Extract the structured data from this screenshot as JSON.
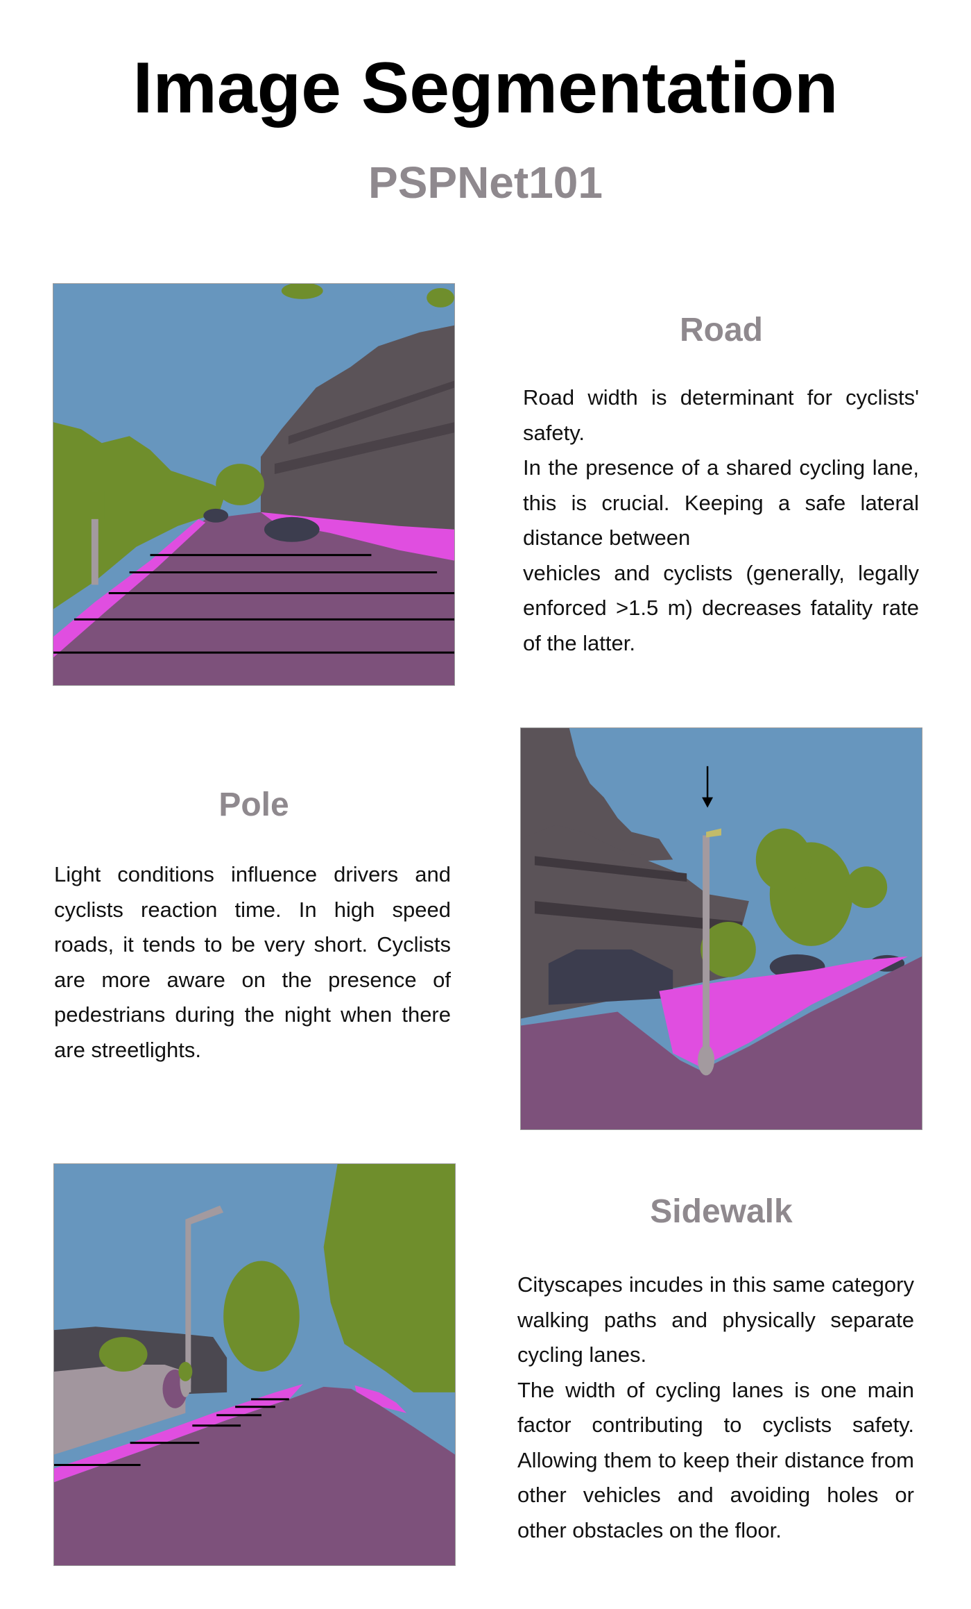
{
  "page": {
    "title": "Image Segmentation",
    "subtitle": "PSPNet101"
  },
  "sections": [
    {
      "heading": "Road",
      "paragraphs": [
        "Road width is determinant for cyclists' safety.",
        "In the presence of a shared cycling lane, this is crucial. Keeping a safe lateral distance between",
        "vehicles and cyclists (generally, legally enforced >1.5 m) decreases fatality rate of the latter."
      ],
      "image": "segmented-street-road"
    },
    {
      "heading": "Pole",
      "paragraphs": [
        "Light conditions influence drivers and cyclists reaction time. In high speed roads, it tends to be very short. Cyclists are more aware on the presence of pedestrians during the night when there are streetlights."
      ],
      "image": "segmented-street-pole"
    },
    {
      "heading": "Sidewalk",
      "paragraphs": [
        "Cityscapes incudes in this same category walking paths and physically separate cycling lanes.",
        "The width of cycling lanes is one main factor contributing to cyclists safety. Allowing them to keep their distance from other vehicles and avoiding holes or other obstacles on the floor."
      ],
      "image": "segmented-street-sidewalk"
    }
  ],
  "colors": {
    "sky": "#6796be",
    "vegetation": "#6f8e2c",
    "road": "#7d517b",
    "sidewalk": "#e04ee0",
    "building": "#5b5358",
    "car": "#3c3d4e",
    "pole": "#a39a9f",
    "heading_gray": "#8f898e"
  }
}
